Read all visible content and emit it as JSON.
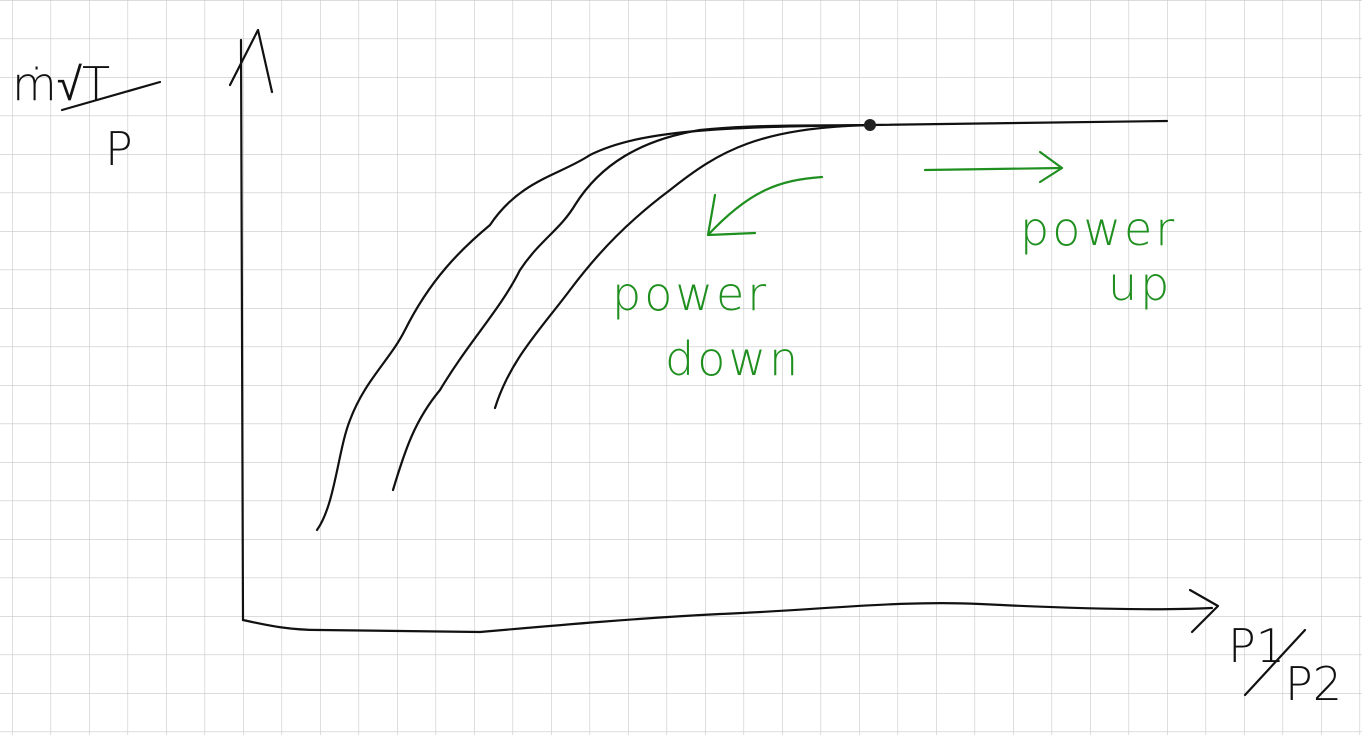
{
  "y_axis_label": {
    "numerator": "ṁ√T",
    "denominator": "P"
  },
  "x_axis_label": {
    "numerator": "P1",
    "denominator": "P2"
  },
  "annotations": [
    {
      "line1": "power",
      "line2": "down"
    },
    {
      "line1": "power",
      "line2": "up"
    }
  ]
}
